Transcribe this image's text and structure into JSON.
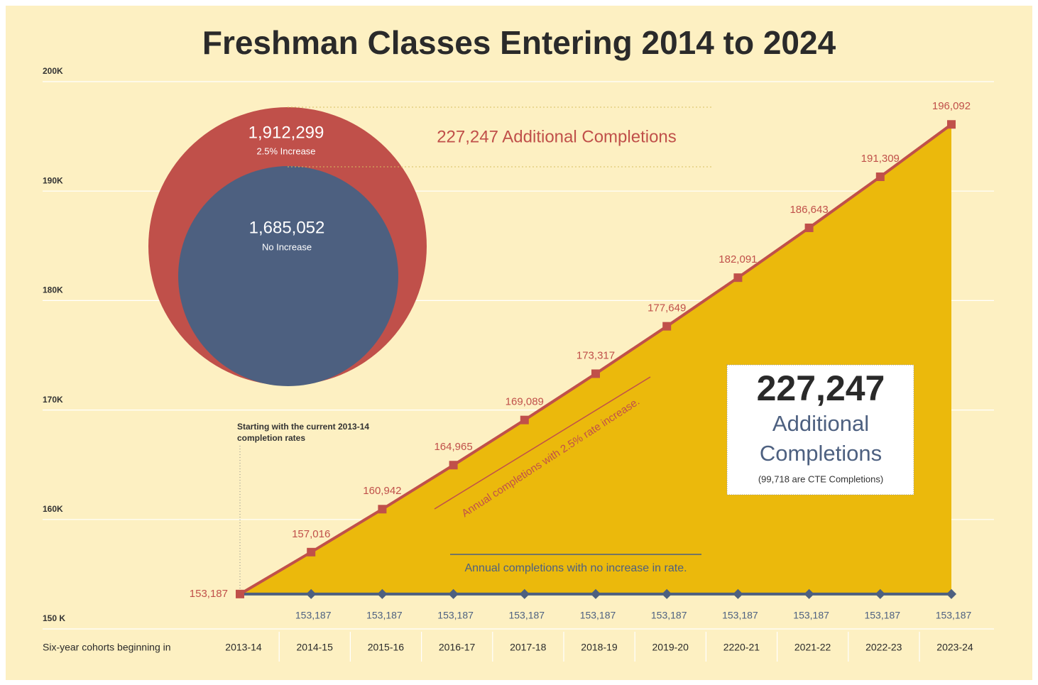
{
  "chart_data": {
    "type": "line",
    "title": "Freshman Classes Entering 2014 to 2024",
    "x_label": "Six-year cohorts beginning in",
    "categories": [
      "2013-14",
      "2014-15",
      "2015-16",
      "2016-17",
      "2017-18",
      "2018-19",
      "2019-20",
      "2220-21",
      "2021-22",
      "2022-23",
      "2023-24"
    ],
    "series": [
      {
        "name": "Annual completions with 2.5% rate increase.",
        "color": "#c0504a",
        "values": [
          153187,
          157016,
          160942,
          164965,
          169089,
          173317,
          177649,
          182091,
          186643,
          191309,
          196092
        ],
        "value_labels": [
          "153,187",
          "157,016",
          "160,942",
          "164,965",
          "169,089",
          "173,317",
          "177,649",
          "182,091",
          "186,643",
          "191,309",
          "196,092"
        ]
      },
      {
        "name": "Annual completions with no increase in rate.",
        "color": "#4d6080",
        "values": [
          153187,
          153187,
          153187,
          153187,
          153187,
          153187,
          153187,
          153187,
          153187,
          153187,
          153187
        ],
        "value_labels": [
          "153,187",
          "153,187",
          "153,187",
          "153,187",
          "153,187",
          "153,187",
          "153,187",
          "153,187",
          "153,187",
          "153,187",
          "153,187"
        ]
      }
    ],
    "fill_color": "#ebb90c",
    "ylim": [
      150000,
      200000
    ],
    "yticks": [
      {
        "value": 150000,
        "label": "150 K"
      },
      {
        "value": 160000,
        "label": "160K"
      },
      {
        "value": 170000,
        "label": "170K"
      },
      {
        "value": 180000,
        "label": "180K"
      },
      {
        "value": 190000,
        "label": "190K"
      },
      {
        "value": 200000,
        "label": "200K"
      }
    ],
    "grid": true,
    "annotations": {
      "outer_total": "1,912,299",
      "outer_label": "2.5% Increase",
      "inner_total": "1,685,052",
      "inner_label": "No Increase",
      "difference": "227,247 Additional Completions",
      "box_number": "227,247",
      "box_line1": "Additional",
      "box_line2": "Completions",
      "box_note": "(99,718 are CTE Completions)",
      "start_note_1": "Starting with the current 2013-14",
      "start_note_2": "completion rates"
    }
  }
}
